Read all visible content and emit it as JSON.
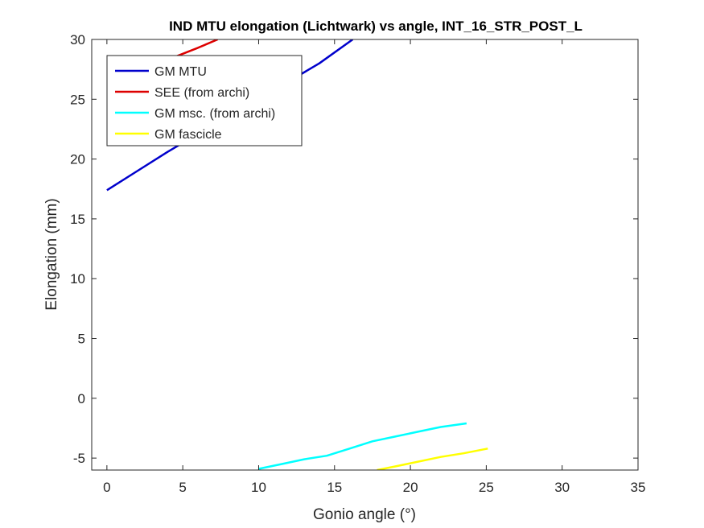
{
  "chart_data": {
    "type": "line",
    "title": "IND MTU elongation (Lichtwark) vs angle, INT_16_STR_POST_L",
    "xlabel": "Gonio angle (°)",
    "ylabel": "Elongation (mm)",
    "xlim": [
      -1,
      35
    ],
    "ylim": [
      -6,
      30
    ],
    "xticks": [
      0,
      5,
      10,
      15,
      20,
      25,
      30,
      35
    ],
    "yticks": [
      -5,
      0,
      5,
      10,
      15,
      20,
      25,
      30
    ],
    "grid": false,
    "legend_position": "top-left",
    "series": [
      {
        "name": "GM MTU",
        "color": "#0000cc",
        "x": [
          0,
          2,
          4,
          6,
          8,
          10,
          12,
          14,
          16.2
        ],
        "y": [
          17.4,
          19.0,
          20.6,
          22.1,
          23.6,
          25.0,
          26.5,
          28.0,
          30.0
        ]
      },
      {
        "name": "SEE (from archi)",
        "color": "#dd0000",
        "x": [
          0,
          1,
          2,
          3,
          4,
          5,
          6,
          7.3
        ],
        "y": [
          26.3,
          26.8,
          27.3,
          27.8,
          28.3,
          28.8,
          29.3,
          30.0
        ]
      },
      {
        "name": "GM msc. (from archi)",
        "color": "#00ffff",
        "x": [
          10.0,
          11.5,
          13.0,
          14.5,
          16.0,
          17.5,
          19.0,
          20.5,
          22.0,
          23.7
        ],
        "y": [
          -5.9,
          -5.5,
          -5.1,
          -4.8,
          -4.2,
          -3.6,
          -3.2,
          -2.8,
          -2.4,
          -2.1
        ]
      },
      {
        "name": "GM fascicle",
        "color": "#ffff00",
        "x": [
          17.8,
          19.0,
          20.5,
          22.0,
          23.5,
          25.1
        ],
        "y": [
          -6.0,
          -5.7,
          -5.3,
          -4.9,
          -4.6,
          -4.2
        ]
      }
    ]
  }
}
